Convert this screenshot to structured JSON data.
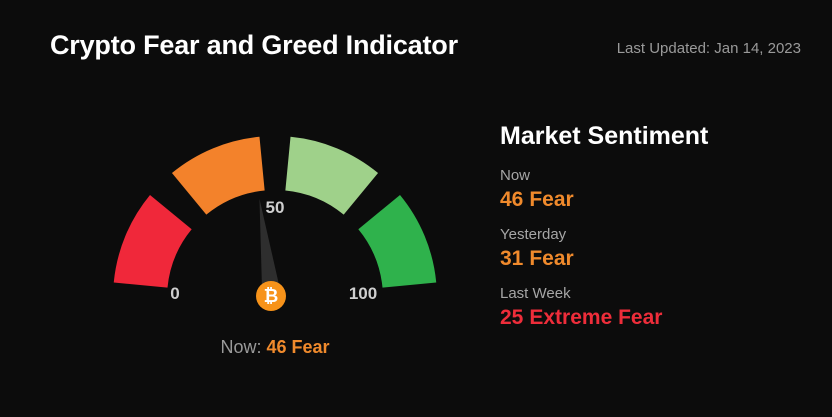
{
  "header": {
    "title": "Crypto Fear and Greed Indicator",
    "last_updated": "Last Updated: Jan 14, 2023"
  },
  "gauge": {
    "value": 46,
    "min_label": "0",
    "mid_label": "50",
    "max_label": "100",
    "min": 0,
    "max": 100,
    "center_icon": "bitcoin-icon",
    "center_symbol": "₿",
    "segment_colors": [
      "#f0283a",
      "#f3822b",
      "#9fd18a",
      "#2fb24c"
    ],
    "now_label": "Now:",
    "now_value": "46 Fear"
  },
  "sentiment": {
    "heading": "Market Sentiment",
    "items": [
      {
        "label": "Now",
        "value": "46",
        "classification": "Fear",
        "color": "#f08a2c"
      },
      {
        "label": "Yesterday",
        "value": "31",
        "classification": "Fear",
        "color": "#f08a2c"
      },
      {
        "label": "Last Week",
        "value": "25",
        "classification": "Extreme Fear",
        "color": "#ee2d3a"
      }
    ]
  }
}
